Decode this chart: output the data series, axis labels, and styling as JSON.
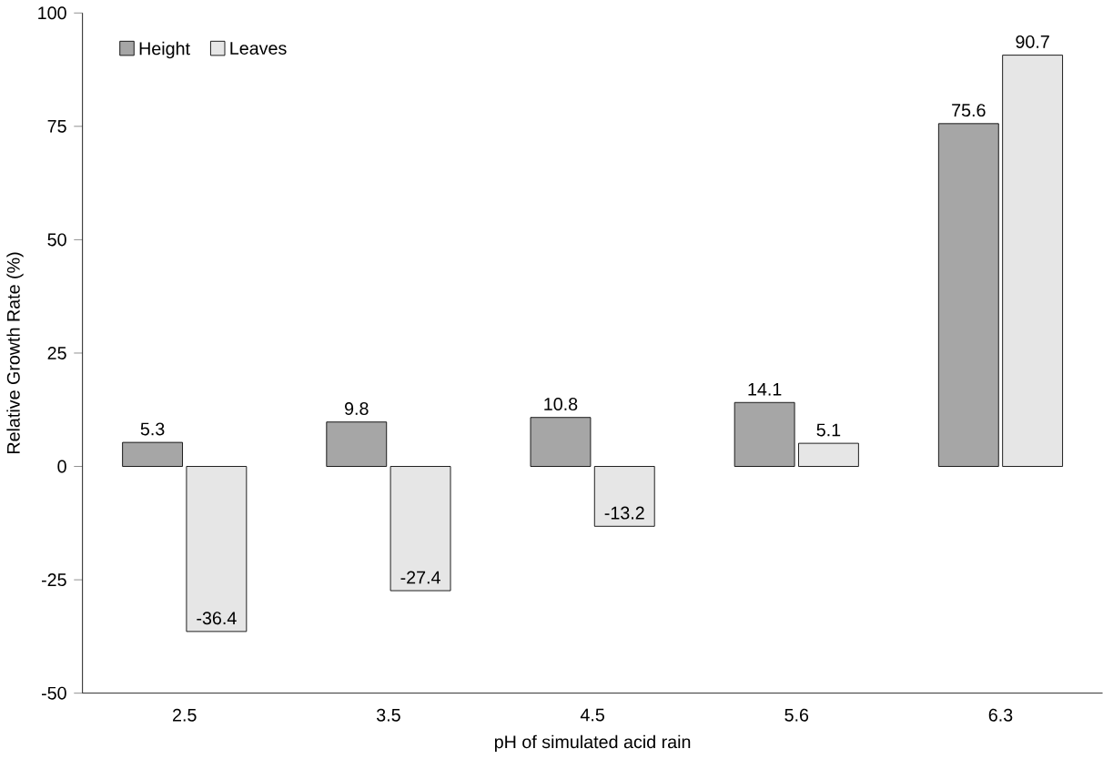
{
  "chart_data": {
    "type": "bar",
    "xlabel": "pH of simulated acid rain",
    "ylabel": "Relative Growth Rate (%)",
    "categories": [
      "2.5",
      "3.5",
      "4.5",
      "5.6",
      "6.3"
    ],
    "series": [
      {
        "name": "Height",
        "color": "#a6a6a6",
        "values": [
          5.3,
          9.8,
          10.8,
          14.1,
          75.6
        ]
      },
      {
        "name": "Leaves",
        "color": "#e6e6e6",
        "values": [
          -36.4,
          -27.4,
          -13.2,
          5.1,
          90.7
        ]
      }
    ],
    "ylim": [
      -50,
      100
    ],
    "yticks": [
      -50,
      -25,
      0,
      25,
      50,
      75,
      100
    ],
    "legend": "top left",
    "data_labels": true,
    "grid": false
  }
}
